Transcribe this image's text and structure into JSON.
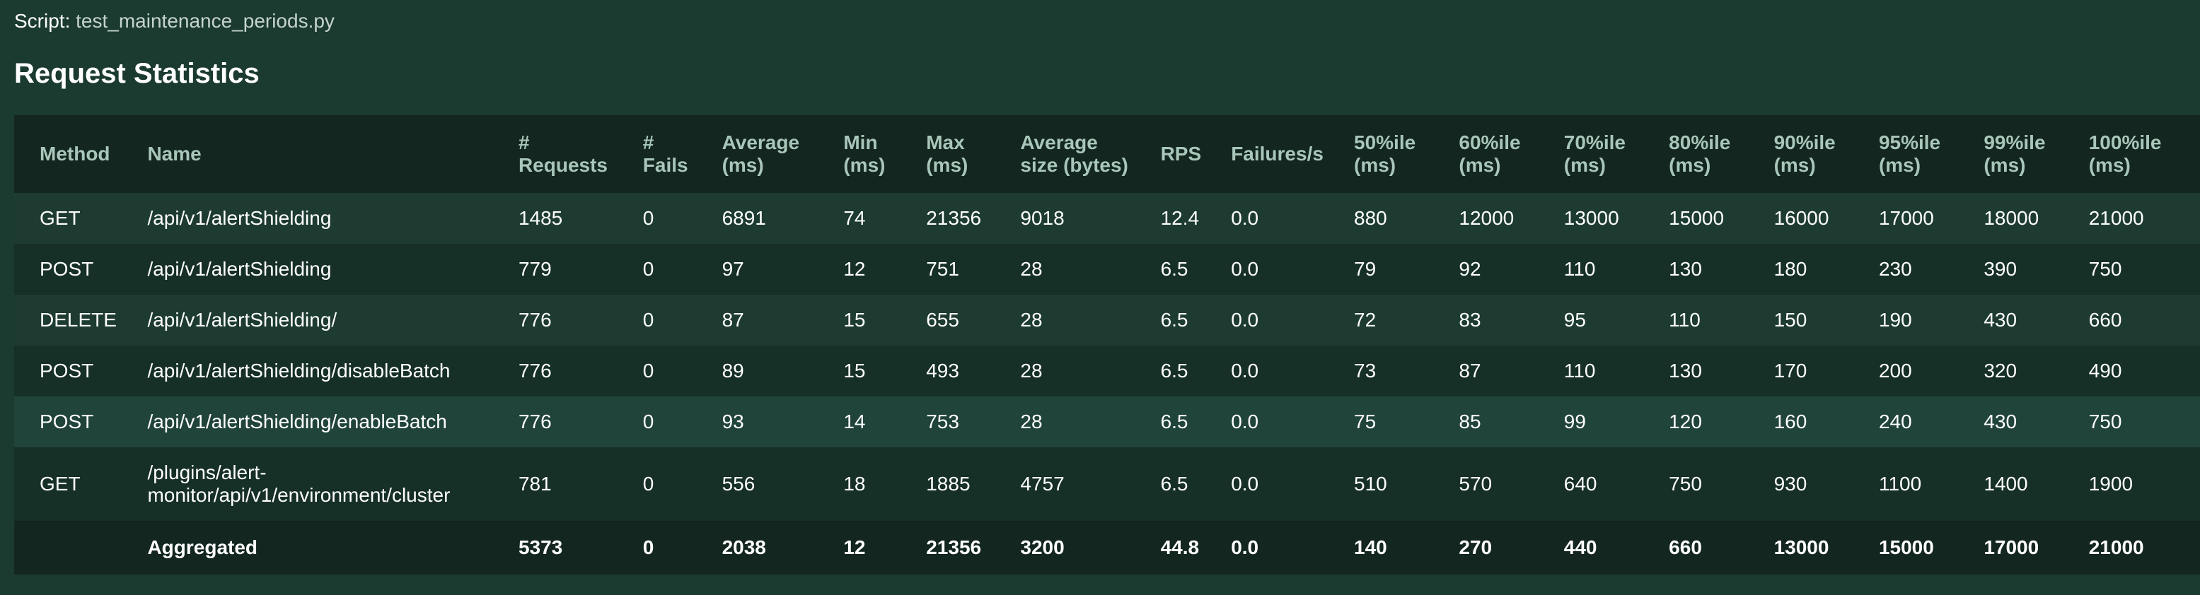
{
  "script": {
    "label": "Script:",
    "name": "test_maintenance_periods.py"
  },
  "title": "Request Statistics",
  "columns": [
    "Method",
    "Name",
    "# Requests",
    "# Fails",
    "Average (ms)",
    "Min (ms)",
    "Max (ms)",
    "Average size (bytes)",
    "RPS",
    "Failures/s",
    "50%ile (ms)",
    "60%ile (ms)",
    "70%ile (ms)",
    "80%ile (ms)",
    "90%ile (ms)",
    "95%ile (ms)",
    "99%ile (ms)",
    "100%ile (ms)"
  ],
  "rows": [
    [
      "GET",
      "/api/v1/alertShielding",
      "1485",
      "0",
      "6891",
      "74",
      "21356",
      "9018",
      "12.4",
      "0.0",
      "880",
      "12000",
      "13000",
      "15000",
      "16000",
      "17000",
      "18000",
      "21000"
    ],
    [
      "POST",
      "/api/v1/alertShielding",
      "779",
      "0",
      "97",
      "12",
      "751",
      "28",
      "6.5",
      "0.0",
      "79",
      "92",
      "110",
      "130",
      "180",
      "230",
      "390",
      "750"
    ],
    [
      "DELETE",
      "/api/v1/alertShielding/",
      "776",
      "0",
      "87",
      "15",
      "655",
      "28",
      "6.5",
      "0.0",
      "72",
      "83",
      "95",
      "110",
      "150",
      "190",
      "430",
      "660"
    ],
    [
      "POST",
      "/api/v1/alertShielding/disableBatch",
      "776",
      "0",
      "89",
      "15",
      "493",
      "28",
      "6.5",
      "0.0",
      "73",
      "87",
      "110",
      "130",
      "170",
      "200",
      "320",
      "490"
    ],
    [
      "POST",
      "/api/v1/alertShielding/enableBatch",
      "776",
      "0",
      "93",
      "14",
      "753",
      "28",
      "6.5",
      "0.0",
      "75",
      "85",
      "99",
      "120",
      "160",
      "240",
      "430",
      "750"
    ],
    [
      "GET",
      "/plugins/alert-monitor/api/v1/environment/cluster",
      "781",
      "0",
      "556",
      "18",
      "1885",
      "4757",
      "6.5",
      "0.0",
      "510",
      "570",
      "640",
      "750",
      "930",
      "1100",
      "1400",
      "1900"
    ]
  ],
  "aggregated": [
    "",
    "Aggregated",
    "5373",
    "0",
    "2038",
    "12",
    "21356",
    "3200",
    "44.8",
    "0.0",
    "140",
    "270",
    "440",
    "660",
    "13000",
    "15000",
    "17000",
    "21000"
  ]
}
